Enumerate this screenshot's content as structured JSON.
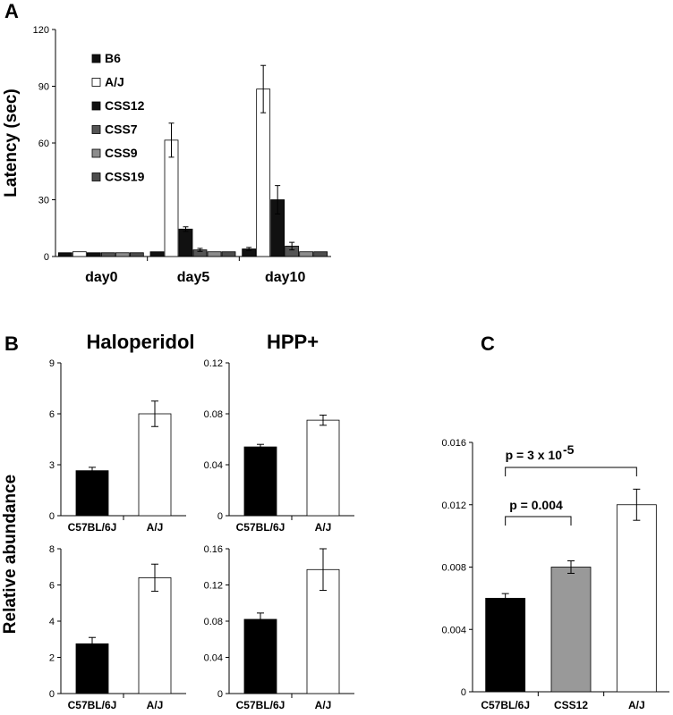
{
  "panels": {
    "a": "A",
    "b": "B",
    "c": "C"
  },
  "colors": {
    "B6": "#111111",
    "A/J": "#ffffff",
    "CSS12": "#111111",
    "CSS7": "#555555",
    "CSS9": "#8c8c8c",
    "CSS19": "#555555",
    "C57BL/6J": "#000000",
    "CSS12_c": "#999999"
  },
  "titles": {
    "haloperidol": "Haloperidol",
    "hpp": "HPP+"
  },
  "shared_ylabel": "Relative abundance",
  "chart_data": [
    {
      "id": "A",
      "type": "bar",
      "ylabel": "Latency (sec)",
      "categories": [
        "day0",
        "day5",
        "day10"
      ],
      "ylim": [
        0,
        120
      ],
      "yticks": [
        "0",
        "30",
        "60",
        "90",
        "120"
      ],
      "legend_position": "top-left",
      "series": [
        {
          "name": "B6",
          "values": [
            2,
            2.5,
            4
          ],
          "errors": [
            0.3,
            0.4,
            0.8
          ]
        },
        {
          "name": "A/J",
          "values": [
            2.5,
            61.5,
            88.5
          ],
          "errors": [
            0.3,
            9,
            12.5
          ]
        },
        {
          "name": "CSS12",
          "values": [
            2,
            14.5,
            30
          ],
          "errors": [
            0.3,
            1.2,
            7.5
          ]
        },
        {
          "name": "CSS7",
          "values": [
            2,
            3.5,
            5.5
          ],
          "errors": [
            0.3,
            0.8,
            2
          ]
        },
        {
          "name": "CSS9",
          "values": [
            2,
            2.5,
            2.5
          ],
          "errors": [
            0.2,
            0.3,
            0.3
          ]
        },
        {
          "name": "CSS19",
          "values": [
            2,
            2.5,
            2.5
          ],
          "errors": [
            0.2,
            0.3,
            0.3
          ]
        }
      ]
    },
    {
      "id": "B1",
      "type": "bar",
      "title": "Haloperidol",
      "categories": [
        "C57BL/6J",
        "A/J"
      ],
      "values": [
        2.65,
        6.0
      ],
      "errors": [
        0.2,
        0.75
      ],
      "ylim": [
        0,
        9
      ],
      "yticks": [
        "0",
        "3",
        "6",
        "9"
      ]
    },
    {
      "id": "B2",
      "type": "bar",
      "title": "HPP+",
      "categories": [
        "C57BL/6J",
        "A/J"
      ],
      "values": [
        0.054,
        0.075
      ],
      "errors": [
        0.002,
        0.004
      ],
      "ylim": [
        0,
        0.12
      ],
      "yticks": [
        "0",
        "0.04",
        "0.08",
        "0.12"
      ]
    },
    {
      "id": "B3",
      "type": "bar",
      "categories": [
        "C57BL/6J",
        "A/J"
      ],
      "values": [
        2.75,
        6.4
      ],
      "errors": [
        0.35,
        0.75
      ],
      "ylim": [
        0,
        8
      ],
      "yticks": [
        "0",
        "2",
        "4",
        "6",
        "8"
      ]
    },
    {
      "id": "B4",
      "type": "bar",
      "categories": [
        "C57BL/6J",
        "A/J"
      ],
      "values": [
        0.082,
        0.137
      ],
      "errors": [
        0.007,
        0.023
      ],
      "ylim": [
        0,
        0.16
      ],
      "yticks": [
        "0",
        "0.04",
        "0.08",
        "0.12",
        "0.16"
      ]
    },
    {
      "id": "C",
      "type": "bar",
      "categories": [
        "C57BL/6J",
        "CSS12",
        "A/J"
      ],
      "values": [
        0.006,
        0.008,
        0.012
      ],
      "errors": [
        0.0003,
        0.0004,
        0.001
      ],
      "ylim": [
        0,
        0.016
      ],
      "yticks": [
        "0",
        "0.004",
        "0.008",
        "0.012",
        "0.016"
      ],
      "annotations": [
        "p = 0.004",
        "p = 3 x 10",
        "-5"
      ]
    }
  ]
}
